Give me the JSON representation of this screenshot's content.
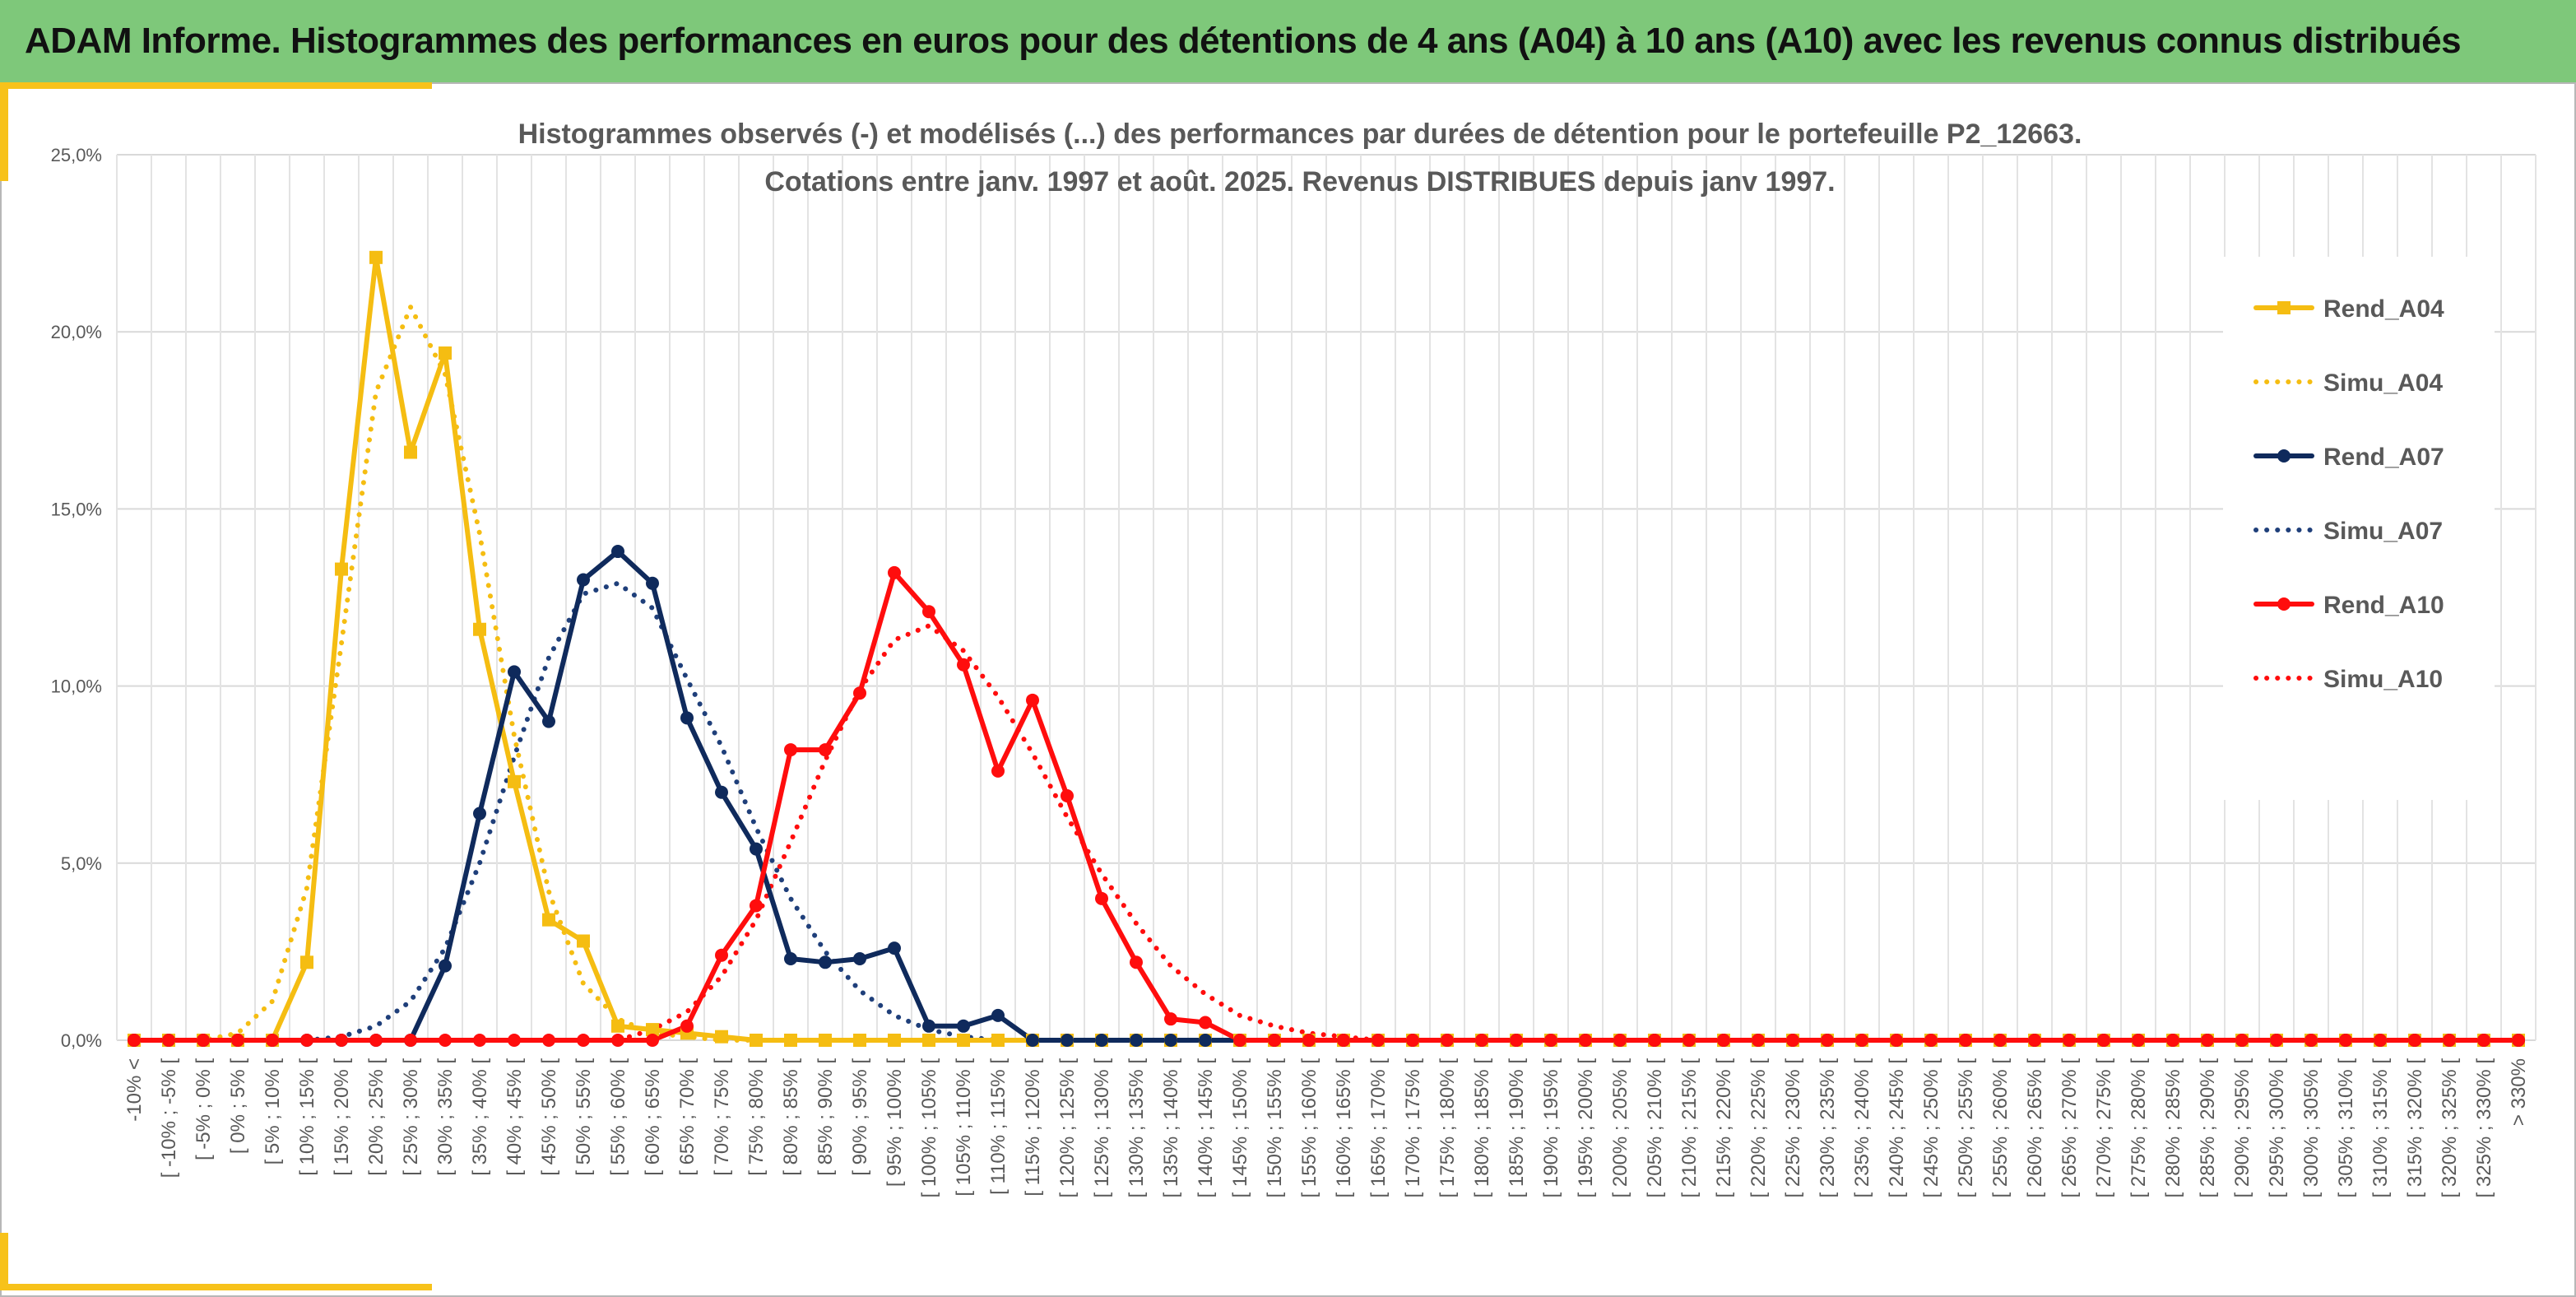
{
  "header": {
    "title": "ADAM Informe. Histogrammes des performances en euros pour des détentions de 4 ans (A04) à 10 ans (A10) avec les revenus connus distribués"
  },
  "colors": {
    "header_bg": "#7ec87a",
    "accent": "#f7c21a",
    "a04": "#f5bd12",
    "a07": "#0f2a5c",
    "a07_sim": "#1f3f7a",
    "a10": "#ff0d0d",
    "grid": "#d9d9d9",
    "text": "#595959"
  },
  "chart_data": {
    "type": "line",
    "title": [
      "Histogrammes observés (-) et modélisés (...) des performances par durées de détention pour le portefeuille P2_12663.",
      "Cotations entre janv. 1997 et août. 2025. Revenus DISTRIBUES depuis janv 1997."
    ],
    "xlabel": "",
    "ylabel": "",
    "ylim": [
      0,
      25
    ],
    "y_ticks": [
      "0,0%",
      "5,0%",
      "10,0%",
      "15,0%",
      "20,0%",
      "25,0%"
    ],
    "grid": true,
    "legend_position": "right",
    "categories": [
      "-10% <",
      "[ -10% ; -5% [",
      "[ -5% ; 0% [",
      "[ 0% ; 5% [",
      "[ 5% ; 10% [",
      "[ 10% ; 15% [",
      "[ 15% ; 20% [",
      "[ 20% ; 25% [",
      "[ 25% ; 30% [",
      "[ 30% ; 35% [",
      "[ 35% ; 40% [",
      "[ 40% ; 45% [",
      "[ 45% ; 50% [",
      "[ 50% ; 55% [",
      "[ 55% ; 60% [",
      "[ 60% ; 65% [",
      "[ 65% ; 70% [",
      "[ 70% ; 75% [",
      "[ 75% ; 80% [",
      "[ 80% ; 85% [",
      "[ 85% ; 90% [",
      "[ 90% ; 95% [",
      "[ 95% ; 100% [",
      "[ 100% ; 105% [",
      "[ 105% ; 110% [",
      "[ 110% ; 115% [",
      "[ 115% ; 120% [",
      "[ 120% ; 125% [",
      "[ 125% ; 130% [",
      "[ 130% ; 135% [",
      "[ 135% ; 140% [",
      "[ 140% ; 145% [",
      "[ 145% ; 150% [",
      "[ 150% ; 155% [",
      "[ 155% ; 160% [",
      "[ 160% ; 165% [",
      "[ 165% ; 170% [",
      "[ 170% ; 175% [",
      "[ 175% ; 180% [",
      "[ 180% ; 185% [",
      "[ 185% ; 190% [",
      "[ 190% ; 195% [",
      "[ 195% ; 200% [",
      "[ 200% ; 205% [",
      "[ 205% ; 210% [",
      "[ 210% ; 215% [",
      "[ 215% ; 220% [",
      "[ 220% ; 225% [",
      "[ 225% ; 230% [",
      "[ 230% ; 235% [",
      "[ 235% ; 240% [",
      "[ 240% ; 245% [",
      "[ 245% ; 250% [",
      "[ 250% ; 255% [",
      "[ 255% ; 260% [",
      "[ 260% ; 265% [",
      "[ 265% ; 270% [",
      "[ 270% ; 275% [",
      "[ 275% ; 280% [",
      "[ 280% ; 285% [",
      "[ 285% ; 290% [",
      "[ 290% ; 295% [",
      "[ 295% ; 300% [",
      "[ 300% ; 305% [",
      "[ 305% ; 310% [",
      "[ 310% ; 315% [",
      "[ 315% ; 320% [",
      "[ 320% ; 325% [",
      "[ 325% ; 330% [",
      "> 330%"
    ],
    "series": [
      {
        "name": "Rend_A04",
        "style": "solid",
        "marker": "square",
        "color": "#f5bd12",
        "values": [
          0,
          0,
          0,
          0,
          0,
          2.2,
          13.3,
          22.1,
          16.6,
          19.4,
          11.6,
          7.3,
          3.4,
          2.8,
          0.4,
          0.3,
          0.2,
          0.1,
          0,
          0,
          0,
          0,
          0,
          0,
          0,
          0,
          0,
          0,
          0,
          0,
          0,
          0,
          0,
          0,
          0,
          0,
          0,
          0,
          0,
          0,
          0,
          0,
          0,
          0,
          0,
          0,
          0,
          0,
          0,
          0,
          0,
          0,
          0,
          0,
          0,
          0,
          0,
          0,
          0,
          0,
          0,
          0,
          0,
          0,
          0,
          0,
          0,
          0,
          0,
          0
        ]
      },
      {
        "name": "Simu_A04",
        "style": "dotted",
        "color": "#f5bd12",
        "values": [
          0,
          0,
          0,
          0.2,
          1.1,
          4.3,
          11.2,
          18.3,
          20.7,
          18.8,
          14.3,
          8.6,
          4.2,
          1.6,
          0.6,
          0.2,
          0.1,
          0,
          0,
          0,
          0,
          0,
          0,
          0,
          0,
          0,
          0,
          0,
          0,
          0,
          0,
          0,
          0,
          0,
          0,
          0,
          0,
          0,
          0,
          0,
          0,
          0,
          0,
          0,
          0,
          0,
          0,
          0,
          0,
          0,
          0,
          0,
          0,
          0,
          0,
          0,
          0,
          0,
          0,
          0,
          0,
          0,
          0,
          0,
          0,
          0,
          0,
          0,
          0,
          0
        ]
      },
      {
        "name": "Rend_A07",
        "style": "solid",
        "marker": "circle",
        "color": "#0f2a5c",
        "values": [
          0,
          0,
          0,
          0,
          0,
          0,
          0,
          0,
          0,
          2.1,
          6.4,
          10.4,
          9.0,
          13.0,
          13.8,
          12.9,
          9.1,
          7.0,
          5.4,
          2.3,
          2.2,
          2.3,
          2.6,
          0.4,
          0.4,
          0.7,
          0,
          0,
          0,
          0,
          0,
          0,
          0,
          0,
          0,
          0,
          0,
          0,
          0,
          0,
          0,
          0,
          0,
          0,
          0,
          0,
          0,
          0,
          0,
          0,
          0,
          0,
          0,
          0,
          0,
          0,
          0,
          0,
          0,
          0,
          0,
          0,
          0,
          0,
          0,
          0,
          0,
          0,
          0,
          0
        ]
      },
      {
        "name": "Simu_A07",
        "style": "dotted",
        "color": "#1f3f7a",
        "values": [
          0,
          0,
          0,
          0,
          0,
          0,
          0.1,
          0.4,
          1.1,
          2.6,
          5.0,
          8.0,
          10.8,
          12.6,
          12.9,
          12.2,
          10.2,
          8.3,
          6.0,
          4.0,
          2.5,
          1.4,
          0.7,
          0.3,
          0.1,
          0,
          0,
          0,
          0,
          0,
          0,
          0,
          0,
          0,
          0,
          0,
          0,
          0,
          0,
          0,
          0,
          0,
          0,
          0,
          0,
          0,
          0,
          0,
          0,
          0,
          0,
          0,
          0,
          0,
          0,
          0,
          0,
          0,
          0,
          0,
          0,
          0,
          0,
          0,
          0,
          0,
          0,
          0,
          0,
          0
        ]
      },
      {
        "name": "Rend_A10",
        "style": "solid",
        "marker": "circle",
        "color": "#ff0d0d",
        "values": [
          0,
          0,
          0,
          0,
          0,
          0,
          0,
          0,
          0,
          0,
          0,
          0,
          0,
          0,
          0,
          0,
          0.4,
          2.4,
          3.8,
          8.2,
          8.2,
          9.8,
          13.2,
          12.1,
          10.6,
          7.6,
          9.6,
          6.9,
          4.0,
          2.2,
          0.6,
          0.5,
          0,
          0,
          0,
          0,
          0,
          0,
          0,
          0,
          0,
          0,
          0,
          0,
          0,
          0,
          0,
          0,
          0,
          0,
          0,
          0,
          0,
          0,
          0,
          0,
          0,
          0,
          0,
          0,
          0,
          0,
          0,
          0,
          0,
          0,
          0,
          0,
          0,
          0
        ]
      },
      {
        "name": "Simu_A10",
        "style": "dotted",
        "color": "#ff0d0d",
        "values": [
          0,
          0,
          0,
          0,
          0,
          0,
          0,
          0,
          0,
          0,
          0,
          0,
          0,
          0,
          0,
          0.3,
          0.8,
          1.8,
          3.4,
          5.6,
          7.9,
          9.9,
          11.3,
          11.7,
          11.0,
          9.7,
          8.1,
          6.3,
          4.7,
          3.3,
          2.1,
          1.3,
          0.7,
          0.4,
          0.2,
          0.1,
          0,
          0,
          0,
          0,
          0,
          0,
          0,
          0,
          0,
          0,
          0,
          0,
          0,
          0,
          0,
          0,
          0,
          0,
          0,
          0,
          0,
          0,
          0,
          0,
          0,
          0,
          0,
          0,
          0,
          0,
          0,
          0,
          0,
          0
        ]
      }
    ]
  }
}
